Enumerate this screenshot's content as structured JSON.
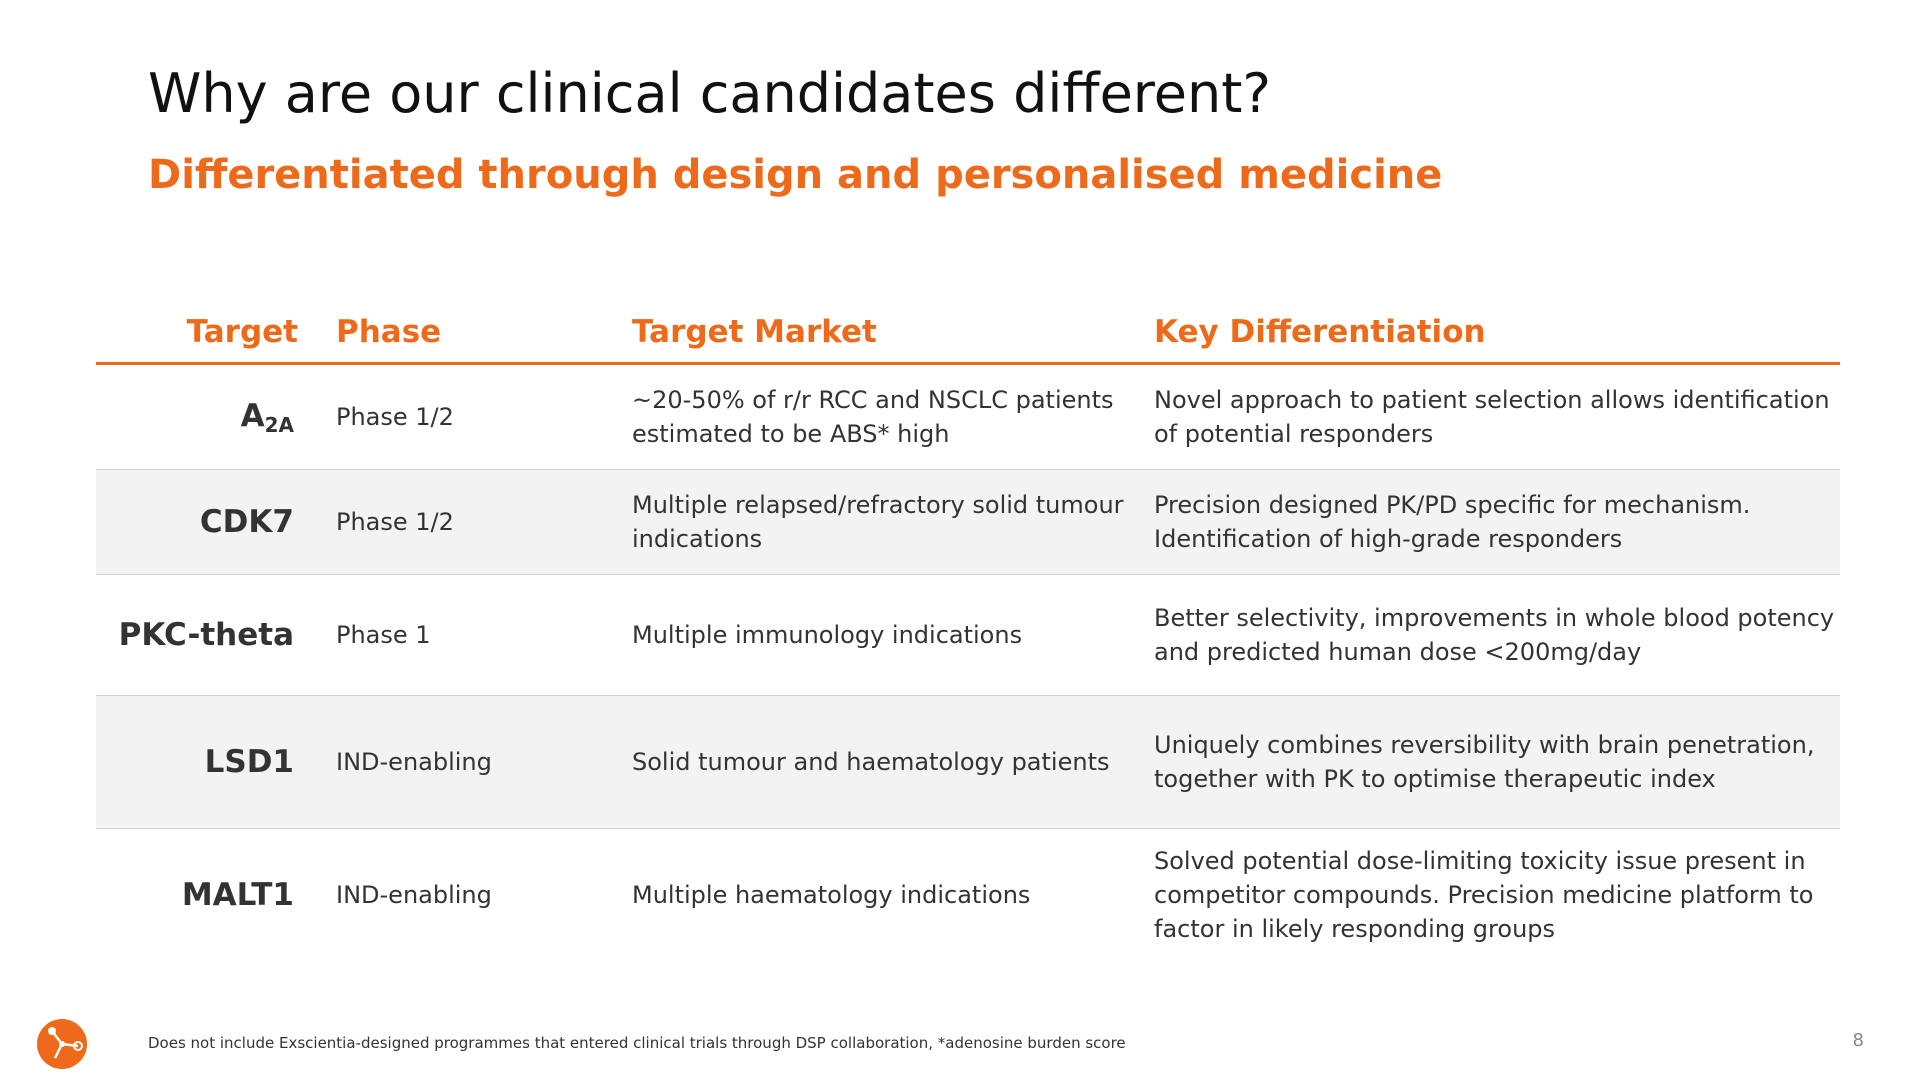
{
  "slide": {
    "title": "Why are our clinical candidates different?",
    "subtitle": "Differentiated through design and personalised medicine",
    "page_number": "8",
    "footnote": "Does not include Exscientia-designed programmes that entered clinical trials through DSP collaboration, *adenosine burden score",
    "accent_color": "#ee6a1b",
    "logo_icon": "exscientia-logo-icon"
  },
  "table": {
    "headers": {
      "target": "Target",
      "phase": "Phase",
      "market": "Target Market",
      "differentiation": "Key Differentiation"
    },
    "rows": [
      {
        "target": "A",
        "target_sub": "2A",
        "phase": "Phase 1/2",
        "market": "~20-50% of r/r RCC and NSCLC patients estimated to be ABS* high",
        "differentiation": "Novel approach to patient selection allows identification of potential responders"
      },
      {
        "target": "CDK7",
        "phase": "Phase 1/2",
        "market": "Multiple relapsed/refractory solid tumour indications",
        "differentiation": "Precision designed PK/PD specific for mechanism. Identification of high-grade responders"
      },
      {
        "target": "PKC-theta",
        "phase": "Phase 1",
        "market": "Multiple immunology indications",
        "differentiation": "Better selectivity, improvements in whole blood potency and predicted human dose <200mg/day"
      },
      {
        "target": "LSD1",
        "phase": "IND-enabling",
        "market": "Solid tumour and haematology patients",
        "differentiation": "Uniquely combines reversibility with brain penetration, together with PK to optimise therapeutic index"
      },
      {
        "target": "MALT1",
        "phase": "IND-enabling",
        "market": "Multiple haematology indications",
        "differentiation": "Solved potential dose-limiting toxicity issue present in competitor compounds. Precision medicine platform to factor in likely responding groups"
      }
    ]
  }
}
